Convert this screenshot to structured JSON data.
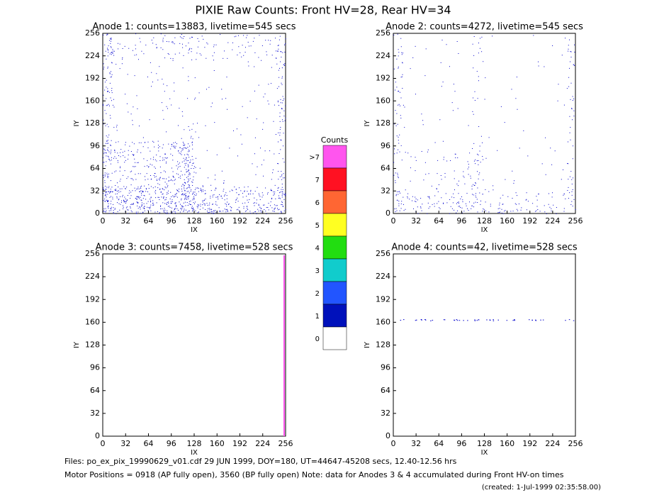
{
  "title": "PIXIE Raw Counts:  Front HV=28, Rear HV=34",
  "chart_data": [
    {
      "type": "image",
      "title": "Anode 1: counts=13883, livetime=545 secs",
      "xlabel": "IX",
      "ylabel": "IY",
      "xlim": [
        0,
        256
      ],
      "ylim": [
        0,
        256
      ],
      "xticks": [
        0,
        32,
        64,
        96,
        128,
        160,
        192,
        224,
        256
      ],
      "yticks": [
        0,
        32,
        64,
        96,
        128,
        160,
        192,
        224,
        256
      ]
    },
    {
      "type": "image",
      "title": "Anode 2: counts=4272, livetime=545 secs",
      "xlabel": "IX",
      "ylabel": "IY",
      "xlim": [
        0,
        256
      ],
      "ylim": [
        0,
        256
      ],
      "xticks": [
        0,
        32,
        64,
        96,
        128,
        160,
        192,
        224,
        256
      ],
      "yticks": [
        0,
        32,
        64,
        96,
        128,
        160,
        192,
        224,
        256
      ]
    },
    {
      "type": "image",
      "title": "Anode 3: counts=7458, livetime=528 secs",
      "xlabel": "IX",
      "ylabel": "IY",
      "xlim": [
        0,
        256
      ],
      "ylim": [
        0,
        256
      ],
      "xticks": [
        0,
        32,
        64,
        96,
        128,
        160,
        192,
        224,
        256
      ],
      "yticks": [
        0,
        32,
        64,
        96,
        128,
        160,
        192,
        224,
        256
      ]
    },
    {
      "type": "image",
      "title": "Anode 4: counts=42, livetime=528 secs",
      "xlabel": "IX",
      "ylabel": "IY",
      "xlim": [
        0,
        256
      ],
      "ylim": [
        0,
        256
      ],
      "xticks": [
        0,
        32,
        64,
        96,
        128,
        160,
        192,
        224,
        256
      ],
      "yticks": [
        0,
        32,
        64,
        96,
        128,
        160,
        192,
        224,
        256
      ]
    }
  ],
  "colorbar": {
    "title": "Counts",
    "labels": [
      ">7",
      "7",
      "6",
      "5",
      "4",
      "3",
      "2",
      "1",
      "0"
    ],
    "colors": [
      "#ff55ee",
      "#ff1122",
      "#ff6633",
      "#ffff22",
      "#22dd11",
      "#11cccc",
      "#2255ff",
      "#0011bb",
      "#ffffff"
    ]
  },
  "footer": {
    "files": "Files: po_ex_pix_19990629_v01.cdf    29 JUN 1999, DOY=180, UT=44647-45208 secs, 12.40-12.56 hrs",
    "motor": "Motor Positions = 0918 (AP fully open), 3560 (BP fully open)    Note: data for Anodes 3 & 4 accumulated during Front HV-on times",
    "created": "(created:  1-Jul-1999 02:35:58.00)"
  }
}
